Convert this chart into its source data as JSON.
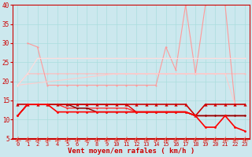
{
  "xlabel": "Vent moyen/en rafales ( km/h )",
  "bg_color": "#cce8ee",
  "grid_color": "#aadddd",
  "x": [
    0,
    1,
    2,
    3,
    4,
    5,
    6,
    7,
    8,
    9,
    10,
    11,
    12,
    13,
    14,
    15,
    16,
    17,
    18,
    19,
    20,
    21,
    22,
    23
  ],
  "series": [
    {
      "name": "line_light1",
      "y": [
        19,
        22,
        22,
        22,
        22,
        22,
        22,
        22,
        22,
        22,
        22,
        22,
        22,
        22,
        22,
        22,
        22,
        22,
        22,
        22,
        22,
        22,
        22,
        22
      ],
      "color": "#ffbbbb",
      "lw": 0.8,
      "ms": 1.5,
      "marker": "o",
      "zo": 2
    },
    {
      "name": "line_light2",
      "y": [
        null,
        30,
        29,
        19,
        19,
        19,
        19,
        19,
        19,
        19,
        19,
        19,
        19,
        19,
        19,
        29,
        23,
        40,
        22,
        40,
        40,
        40,
        14,
        14
      ],
      "color": "#ff9999",
      "lw": 0.8,
      "ms": 1.5,
      "marker": "o",
      "zo": 2
    },
    {
      "name": "line_light3",
      "y": [
        19,
        null,
        null,
        null,
        null,
        null,
        null,
        null,
        null,
        null,
        22,
        22,
        22,
        22,
        22,
        22,
        22,
        22,
        22,
        22,
        22,
        22,
        14,
        14
      ],
      "color": "#ffcccc",
      "lw": 0.8,
      "ms": 1.5,
      "marker": "o",
      "zo": 2
    },
    {
      "name": "line_light4",
      "y": [
        19,
        22,
        26,
        26,
        26,
        26,
        26,
        26,
        26,
        26,
        26,
        26,
        26,
        26,
        26,
        26,
        26,
        26,
        26,
        26,
        26,
        26,
        26,
        26
      ],
      "color": "#ffdddd",
      "lw": 0.8,
      "ms": 1.5,
      "marker": "o",
      "zo": 2
    },
    {
      "name": "line_dark_tri",
      "y": [
        14,
        14,
        14,
        14,
        14,
        14,
        14,
        14,
        14,
        14,
        14,
        14,
        14,
        14,
        14,
        14,
        14,
        14,
        11,
        14,
        14,
        14,
        14,
        14
      ],
      "color": "#cc0000",
      "lw": 1.2,
      "ms": 3.0,
      "marker": "^",
      "zo": 5
    },
    {
      "name": "line_med1",
      "y": [
        11,
        14,
        14,
        14,
        14,
        13,
        13,
        13,
        13,
        13,
        13,
        13,
        12,
        12,
        12,
        12,
        12,
        12,
        11,
        11,
        11,
        11,
        11,
        11
      ],
      "color": "#ff3333",
      "lw": 1.0,
      "ms": 1.5,
      "marker": "o",
      "zo": 3
    },
    {
      "name": "line_med2",
      "y": [
        11,
        14,
        14,
        14,
        14,
        14,
        14,
        14,
        14,
        14,
        14,
        14,
        12,
        12,
        12,
        12,
        12,
        12,
        11,
        11,
        11,
        11,
        11,
        11
      ],
      "color": "#dd0000",
      "lw": 1.0,
      "ms": 1.5,
      "marker": "o",
      "zo": 3
    },
    {
      "name": "line_bottom",
      "y": [
        11,
        14,
        14,
        14,
        12,
        12,
        12,
        12,
        12,
        12,
        12,
        12,
        12,
        12,
        12,
        12,
        12,
        12,
        11,
        8,
        8,
        11,
        8,
        7
      ],
      "color": "#ff0000",
      "lw": 1.2,
      "ms": 2.0,
      "marker": "o",
      "zo": 5
    },
    {
      "name": "line_darkest",
      "y": [
        11,
        14,
        14,
        14,
        14,
        14,
        13,
        13,
        12,
        12,
        12,
        12,
        12,
        12,
        12,
        12,
        12,
        12,
        11,
        11,
        11,
        11,
        11,
        11
      ],
      "color": "#880000",
      "lw": 1.0,
      "ms": 1.5,
      "marker": "o",
      "zo": 3
    }
  ],
  "ylim": [
    5,
    40
  ],
  "yticks": [
    5,
    10,
    15,
    20,
    25,
    30,
    35,
    40
  ],
  "xlim": [
    -0.5,
    23.5
  ],
  "xtick_fontsize": 5.0,
  "ytick_fontsize": 5.5,
  "xlabel_fontsize": 6.5,
  "arrow_color": "#ee6655",
  "spine_color": "#cc0000",
  "tick_color": "#cc0000",
  "label_color": "#cc0000"
}
